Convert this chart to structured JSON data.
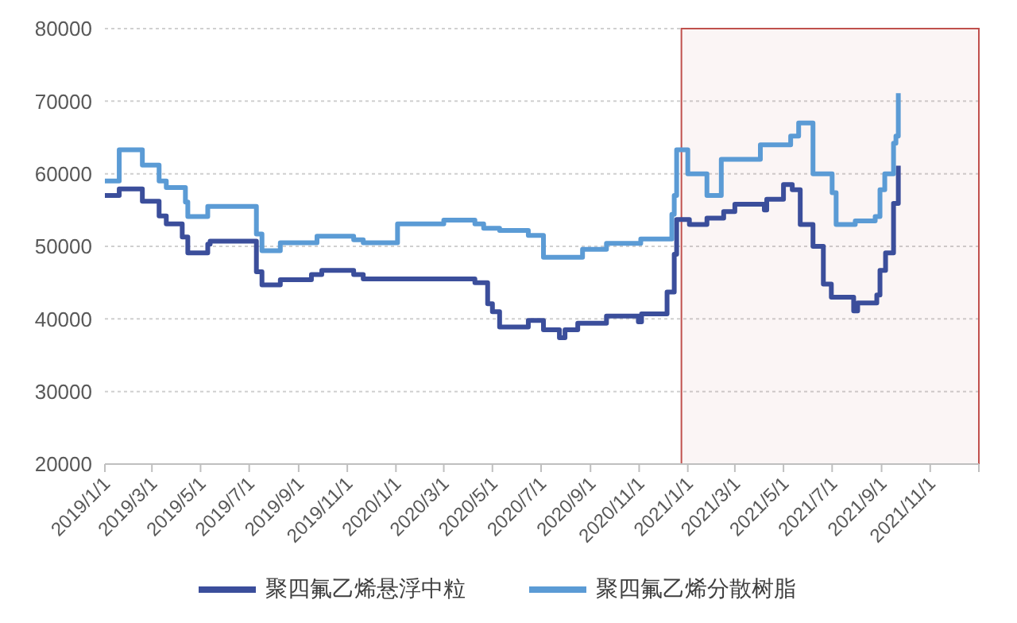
{
  "chart_data": {
    "type": "step",
    "xlim": [
      "2019-01-01",
      "2022-01-01"
    ],
    "xticks": [
      {
        "value": "2019-01-01",
        "label": "2019/1/1"
      },
      {
        "value": "2019-03-01",
        "label": "2019/3/1"
      },
      {
        "value": "2019-05-01",
        "label": "2019/5/1"
      },
      {
        "value": "2019-07-01",
        "label": "2019/7/1"
      },
      {
        "value": "2019-09-01",
        "label": "2019/9/1"
      },
      {
        "value": "2019-11-01",
        "label": "2019/11/1"
      },
      {
        "value": "2020-01-01",
        "label": "2020/1/1"
      },
      {
        "value": "2020-03-01",
        "label": "2020/3/1"
      },
      {
        "value": "2020-05-01",
        "label": "2020/5/1"
      },
      {
        "value": "2020-07-01",
        "label": "2020/7/1"
      },
      {
        "value": "2020-09-01",
        "label": "2020/9/1"
      },
      {
        "value": "2020-11-01",
        "label": "2020/11/1"
      },
      {
        "value": "2021-01-01",
        "label": "2021/1/1"
      },
      {
        "value": "2021-03-01",
        "label": "2021/3/1"
      },
      {
        "value": "2021-05-01",
        "label": "2021/5/1"
      },
      {
        "value": "2021-07-01",
        "label": "2021/7/1"
      },
      {
        "value": "2021-09-01",
        "label": "2021/9/1"
      },
      {
        "value": "2021-11-01",
        "label": "2021/11/1"
      },
      {
        "value": "2022-01-01",
        "label": null
      }
    ],
    "ylim": [
      20000,
      80000
    ],
    "yticks": [
      20000,
      30000,
      40000,
      50000,
      60000,
      70000,
      80000
    ],
    "grid": "y",
    "legend": "bottom",
    "marker": "none",
    "line_style": "solid",
    "bands": [
      {
        "axis": "x",
        "from": "2020-12-24",
        "to": "2022-01-01",
        "color": "#c0504d"
      }
    ],
    "series": [
      {
        "name": "聚四氟乙烯悬浮中粒",
        "color": "#3b4e9b",
        "x": [
          "2019-01-01",
          "2019-01-19",
          "2019-02-17",
          "2019-03-10",
          "2019-03-19",
          "2019-04-08",
          "2019-04-15",
          "2019-05-10",
          "2019-05-13",
          "2019-07-10",
          "2019-07-17",
          "2019-08-09",
          "2019-09-17",
          "2019-09-30",
          "2019-11-09",
          "2019-11-21",
          "2020-04-09",
          "2020-04-25",
          "2020-05-01",
          "2020-05-10",
          "2020-06-15",
          "2020-07-04",
          "2020-07-24",
          "2020-07-31",
          "2020-08-16",
          "2020-09-21",
          "2020-10-31",
          "2020-11-04",
          "2020-12-06",
          "2020-12-15",
          "2020-12-18",
          "2021-01-03",
          "2021-01-25",
          "2021-02-15",
          "2021-03-01",
          "2021-04-07",
          "2021-04-10",
          "2021-05-01",
          "2021-05-12",
          "2021-05-22",
          "2021-06-07",
          "2021-06-20",
          "2021-06-30",
          "2021-07-28",
          "2021-08-02",
          "2021-08-26",
          "2021-08-30",
          "2021-09-06",
          "2021-09-16",
          "2021-09-22"
        ],
        "values": [
          57000,
          57900,
          56200,
          54200,
          53100,
          51300,
          49100,
          50300,
          50700,
          46500,
          44700,
          45400,
          46100,
          46700,
          46100,
          45500,
          45000,
          42100,
          41000,
          38900,
          39800,
          38500,
          37400,
          38500,
          39400,
          40400,
          39600,
          40700,
          43700,
          48900,
          53700,
          53000,
          53900,
          54800,
          55800,
          55000,
          56500,
          58500,
          57800,
          53000,
          50000,
          44800,
          43000,
          41100,
          42200,
          43300,
          46700,
          49100,
          55900,
          61100
        ]
      },
      {
        "name": "聚四氟乙烯分散树脂",
        "color": "#5b9bd5",
        "x": [
          "2019-01-01",
          "2019-01-19",
          "2019-02-17",
          "2019-03-10",
          "2019-03-19",
          "2019-04-12",
          "2019-04-15",
          "2019-05-10",
          "2019-07-10",
          "2019-07-17",
          "2019-08-09",
          "2019-09-24",
          "2019-11-09",
          "2019-11-21",
          "2020-01-03",
          "2020-03-01",
          "2020-04-09",
          "2020-04-20",
          "2020-05-10",
          "2020-06-15",
          "2020-07-04",
          "2020-08-22",
          "2020-09-21",
          "2020-11-03",
          "2020-12-12",
          "2020-12-15",
          "2020-12-18",
          "2021-01-01",
          "2021-01-25",
          "2021-02-12",
          "2021-04-02",
          "2021-05-10",
          "2021-05-20",
          "2021-06-07",
          "2021-07-01",
          "2021-07-06",
          "2021-07-30",
          "2021-08-24",
          "2021-08-30",
          "2021-09-05",
          "2021-09-16",
          "2021-09-19",
          "2021-09-22"
        ],
        "values": [
          59000,
          63300,
          61200,
          59000,
          58100,
          56100,
          54100,
          55500,
          51700,
          49400,
          50500,
          51400,
          50900,
          50500,
          53100,
          53600,
          53100,
          52500,
          52200,
          51500,
          48500,
          49600,
          50400,
          51000,
          54400,
          57000,
          63300,
          60000,
          57000,
          62000,
          64000,
          65200,
          67000,
          60000,
          57400,
          53000,
          53500,
          54100,
          57800,
          60000,
          64200,
          65200,
          71100
        ]
      }
    ]
  }
}
